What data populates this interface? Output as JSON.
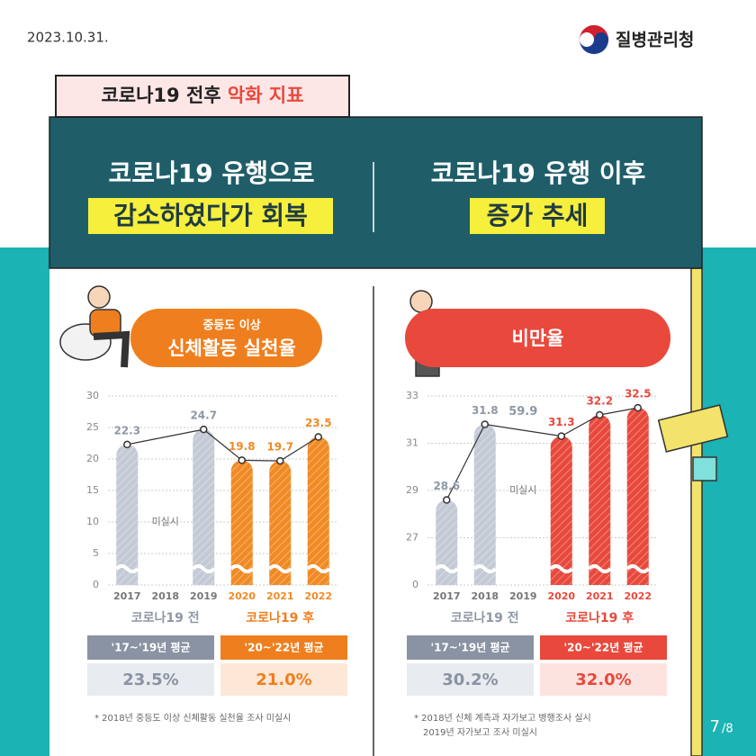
{
  "date": "2023.10.31.",
  "logo": "질병관리청",
  "tag": {
    "text": "코로나19 전후",
    "highlight": "악화 지표"
  },
  "header": {
    "left": {
      "line1": "코로나19 유행으로",
      "line2": "감소하였다가 회복"
    },
    "right": {
      "line1": "코로나19 유행 이후",
      "line2": "증가 추세"
    }
  },
  "chart_data": [
    {
      "type": "bar",
      "subtitle": "중등도 이상",
      "title": "신체활동 실천율",
      "title_color": "#ef7f1e",
      "categories": [
        "2017",
        "2018",
        "2019",
        "2020",
        "2021",
        "2022"
      ],
      "values": [
        22.3,
        null,
        24.7,
        19.8,
        19.7,
        23.5
      ],
      "colors": [
        "#c4cad5",
        "#c4cad5",
        "#c4cad5",
        "#f08a24",
        "#f08a24",
        "#f08a24"
      ],
      "ylim": [
        0,
        30
      ],
      "yticks": [
        0,
        5,
        10,
        15,
        20,
        25,
        30
      ],
      "grid": true,
      "missing_label": "미실시",
      "groups": [
        {
          "label": "코로나19 전",
          "color": "#8f97a6"
        },
        {
          "label": "코로나19 후",
          "color": "#ef7f1e"
        }
      ],
      "averages": [
        {
          "label": "'17~'19년 평균",
          "value": "23.5%",
          "color": "#8a93a3",
          "bg": "#e8ebef"
        },
        {
          "label": "'20~'22년 평균",
          "value": "21.0%",
          "color": "#ef7f1e",
          "bg": "#fde7d6"
        }
      ],
      "notes": [
        "* 2018년 중등도 이상 신체활동 실천율 조사 미실시"
      ]
    },
    {
      "type": "bar",
      "title": "비만율",
      "title_color": "#e8493c",
      "categories": [
        "2017",
        "2018",
        "2019",
        "2020",
        "2021",
        "2022"
      ],
      "values": [
        28.6,
        31.8,
        null,
        31.3,
        32.2,
        32.5
      ],
      "colors": [
        "#c4cad5",
        "#c4cad5",
        "#c4cad5",
        "#e8493c",
        "#e8493c",
        "#e8493c"
      ],
      "ylim": [
        0,
        33
      ],
      "axis_break": [
        0,
        25
      ],
      "yticks": [
        0,
        27,
        29,
        31,
        33
      ],
      "grid": true,
      "missing_label": "미실시",
      "annotations": [
        "59.9"
      ],
      "groups": [
        {
          "label": "코로나19 전",
          "color": "#8f97a6"
        },
        {
          "label": "코로나19 후",
          "color": "#e8493c"
        }
      ],
      "averages": [
        {
          "label": "'17~'19년 평균",
          "value": "30.2%",
          "color": "#8a93a3",
          "bg": "#e8ebef"
        },
        {
          "label": "'20~'22년 평균",
          "value": "32.0%",
          "color": "#e8493c",
          "bg": "#fde3e0"
        }
      ],
      "notes": [
        "* 2018년 신체 계측과 자가보고 병행조사 실시",
        "2019년 자가보고 조사 미실시"
      ]
    }
  ],
  "page": "7",
  "page_total": "/8"
}
